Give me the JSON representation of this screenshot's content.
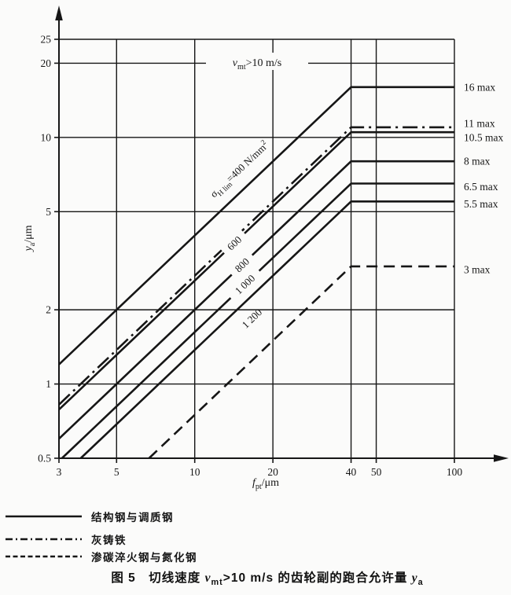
{
  "colors": {
    "ink": "#161616",
    "paper": "#fbfbfa"
  },
  "figure": {
    "caption_parts": [
      {
        "t": "图 5　切线速度 "
      },
      {
        "t": "v",
        "i": true
      },
      {
        "t": "mt",
        "sub": true
      },
      {
        "t": ">10 m/s 的齿轮副的跑合允许量 "
      },
      {
        "t": "y",
        "i": true
      },
      {
        "t": "a",
        "sub": true
      }
    ]
  },
  "legend": {
    "items": [
      {
        "style": "solid",
        "label": "结构钢与调质钢"
      },
      {
        "style": "dashdot",
        "label": "灰铸铁"
      },
      {
        "style": "dashed",
        "label": "渗碳淬火钢与氮化钢"
      }
    ]
  },
  "chart_data": {
    "type": "line",
    "title": "图 5 切线速度 vmt>10 m/s 的齿轮副的跑合允许量 ya",
    "xlabel": "fpt/μm",
    "ylabel": "ya/μm",
    "xlabel_parts": [
      {
        "t": "f",
        "i": true
      },
      {
        "t": "pt",
        "sub": true
      },
      {
        "t": "/μm"
      }
    ],
    "ylabel_parts": [
      {
        "t": "y",
        "i": true
      },
      {
        "t": "a",
        "sub": true
      },
      {
        "t": "/μm"
      }
    ],
    "x_scale": "log",
    "y_scale": "log",
    "xlim": [
      3,
      100
    ],
    "ylim": [
      0.5,
      25
    ],
    "x_ticks": [
      3,
      5,
      10,
      20,
      40,
      50,
      100
    ],
    "y_ticks": [
      25,
      20,
      10,
      5,
      2,
      1,
      0.5
    ],
    "x_gridlines": [
      5,
      10,
      20,
      40,
      50,
      100
    ],
    "y_gridlines": [
      25,
      20,
      10,
      5,
      2,
      1
    ],
    "grid": true,
    "annotation": "vmt>10 m/s",
    "annotation_parts": [
      {
        "t": "v",
        "i": true
      },
      {
        "t": "mt",
        "sub": true
      },
      {
        "t": ">10 m/s"
      }
    ],
    "legend_position": "below",
    "series": [
      {
        "id": "steel-400",
        "material": "结构钢与调质钢",
        "sigma_h_lim": 400,
        "style": "solid",
        "points": [
          [
            3,
            1.2
          ],
          [
            40,
            16
          ],
          [
            100,
            16
          ]
        ],
        "max_label": "16 max",
        "label_dy": 0,
        "inline_label": {
          "anchor_x": 16.5,
          "offset": -22,
          "parts": [
            {
              "t": "σ"
            },
            {
              "t": "H lim",
              "sub": true
            },
            {
              "t": "=400 N/mm"
            },
            {
              "t": "2",
              "sup": true
            }
          ]
        }
      },
      {
        "id": "gray-cast-iron",
        "material": "灰铸铁",
        "style": "dashdot",
        "points": [
          [
            3,
            0.825
          ],
          [
            40,
            11
          ],
          [
            100,
            11
          ]
        ],
        "max_label": "11 max",
        "label_dy": -5
      },
      {
        "id": "steel-600",
        "material": "结构钢与调质钢",
        "sigma_h_lim": 600,
        "style": "solid",
        "points": [
          [
            3,
            0.7875
          ],
          [
            40,
            10.5
          ],
          [
            100,
            10.5
          ]
        ],
        "max_label": "10.5 max",
        "label_dy": 7,
        "inline_label": {
          "anchor_x": 14.2,
          "offset": 0,
          "width": 30,
          "parts": [
            {
              "t": "600"
            }
          ]
        }
      },
      {
        "id": "steel-800",
        "material": "结构钢与调质钢",
        "sigma_h_lim": 800,
        "style": "solid",
        "points": [
          [
            3,
            0.6
          ],
          [
            40,
            8
          ],
          [
            100,
            8
          ]
        ],
        "max_label": "8 max",
        "label_dy": 0,
        "inline_label": {
          "anchor_x": 15.2,
          "offset": 0,
          "width": 30,
          "parts": [
            {
              "t": "800"
            }
          ]
        }
      },
      {
        "id": "steel-1000",
        "material": "结构钢与调质钢",
        "sigma_h_lim": 1000,
        "style": "solid",
        "points": [
          [
            3.08,
            0.5
          ],
          [
            40,
            6.5
          ],
          [
            100,
            6.5
          ]
        ],
        "max_label": "6.5 max",
        "label_dy": 4,
        "inline_label": {
          "anchor_x": 15.6,
          "offset": 0,
          "width": 44,
          "parts": [
            {
              "t": "1 000"
            }
          ]
        }
      },
      {
        "id": "steel-1200",
        "material": "结构钢与调质钢",
        "sigma_h_lim": 1200,
        "style": "solid",
        "points": [
          [
            3.64,
            0.5
          ],
          [
            40,
            5.5
          ],
          [
            100,
            5.5
          ]
        ],
        "max_label": "5.5 max",
        "label_dy": 3,
        "inline_label": {
          "anchor_x": 15.0,
          "offset": 21,
          "width": 44,
          "parts": [
            {
              "t": "1 200"
            }
          ]
        }
      },
      {
        "id": "carburized-nitrided",
        "material": "渗碳淬火钢与氮化钢",
        "style": "dashed",
        "points": [
          [
            6.67,
            0.5
          ],
          [
            40,
            3
          ],
          [
            100,
            3
          ]
        ],
        "max_label": "3 max",
        "label_dy": 4
      }
    ]
  }
}
